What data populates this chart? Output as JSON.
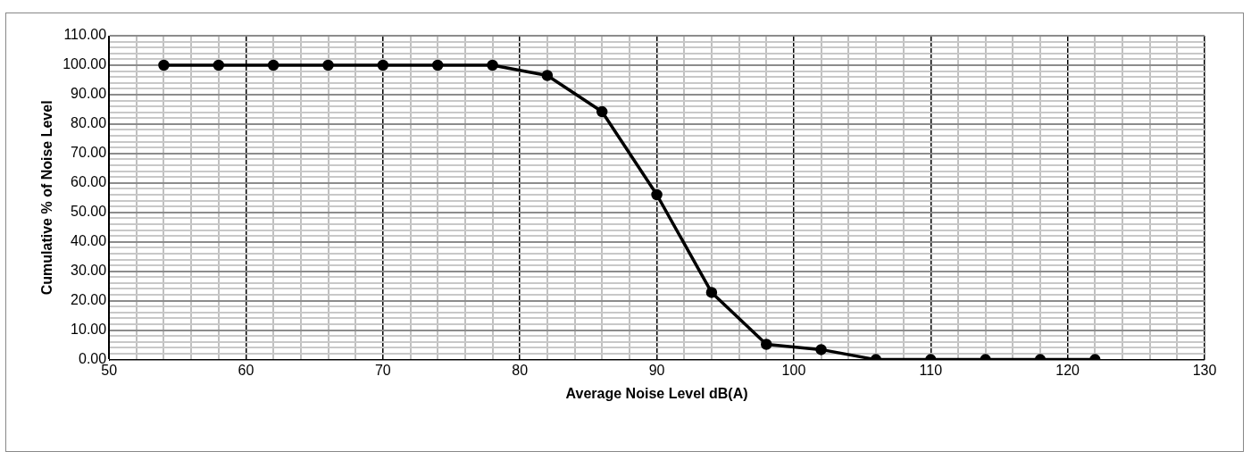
{
  "chart_data": {
    "type": "line",
    "xlabel": "Average Noise Level dB(A)",
    "ylabel": "Cumulative % of Noise Level",
    "x": [
      54,
      58,
      62,
      66,
      70,
      74,
      78,
      82,
      86,
      90,
      94,
      98,
      102,
      106,
      110,
      114,
      118,
      122
    ],
    "series": [
      {
        "color": "#000000",
        "values": [
          100,
          100,
          100,
          100,
          100,
          100,
          100,
          96.5,
          84.2,
          56,
          22.8,
          5.2,
          3.4,
          0,
          0,
          0,
          0,
          0
        ]
      }
    ],
    "xlim": [
      50,
      130
    ],
    "xticks": [
      50,
      {
        "value": 52,
        "label": null
      },
      {
        "value": 54,
        "label": null
      },
      {
        "value": 56,
        "label": null
      },
      {
        "value": 58,
        "label": null
      },
      60,
      {
        "value": 62,
        "label": null
      },
      {
        "value": 64,
        "label": null
      },
      {
        "value": 66,
        "label": null
      },
      {
        "value": 68,
        "label": null
      },
      70,
      {
        "value": 72,
        "label": null
      },
      {
        "value": 74,
        "label": null
      },
      {
        "value": 76,
        "label": null
      },
      {
        "value": 78,
        "label": null
      },
      80,
      {
        "value": 82,
        "label": null
      },
      {
        "value": 84,
        "label": null
      },
      {
        "value": 86,
        "label": null
      },
      {
        "value": 88,
        "label": null
      },
      90,
      {
        "value": 92,
        "label": null
      },
      {
        "value": 94,
        "label": null
      },
      {
        "value": 96,
        "label": null
      },
      {
        "value": 98,
        "label": null
      },
      100,
      {
        "value": 102,
        "label": null
      },
      {
        "value": 104,
        "label": null
      },
      {
        "value": 106,
        "label": null
      },
      {
        "value": 108,
        "label": null
      },
      110,
      {
        "value": 112,
        "label": null
      },
      {
        "value": 114,
        "label": null
      },
      {
        "value": 116,
        "label": null
      },
      {
        "value": 118,
        "label": null
      },
      120,
      {
        "value": 122,
        "label": null
      },
      {
        "value": 124,
        "label": null
      },
      {
        "value": 126,
        "label": null
      },
      {
        "value": 128,
        "label": null
      },
      130
    ],
    "ylim": [
      0,
      110
    ],
    "yticks": [
      {
        "value": 0,
        "label": "0.00"
      },
      {
        "value": 2,
        "label": null
      },
      {
        "value": 4,
        "label": null
      },
      {
        "value": 6,
        "label": null
      },
      {
        "value": 8,
        "label": null
      },
      {
        "value": 10,
        "label": "10.00"
      },
      {
        "value": 12,
        "label": null
      },
      {
        "value": 14,
        "label": null
      },
      {
        "value": 16,
        "label": null
      },
      {
        "value": 18,
        "label": null
      },
      {
        "value": 20,
        "label": "20.00"
      },
      {
        "value": 22,
        "label": null
      },
      {
        "value": 24,
        "label": null
      },
      {
        "value": 26,
        "label": null
      },
      {
        "value": 28,
        "label": null
      },
      {
        "value": 30,
        "label": "30.00"
      },
      {
        "value": 32,
        "label": null
      },
      {
        "value": 34,
        "label": null
      },
      {
        "value": 36,
        "label": null
      },
      {
        "value": 38,
        "label": null
      },
      {
        "value": 40,
        "label": "40.00"
      },
      {
        "value": 42,
        "label": null
      },
      {
        "value": 44,
        "label": null
      },
      {
        "value": 46,
        "label": null
      },
      {
        "value": 48,
        "label": null
      },
      {
        "value": 50,
        "label": "50.00"
      },
      {
        "value": 52,
        "label": null
      },
      {
        "value": 54,
        "label": null
      },
      {
        "value": 56,
        "label": null
      },
      {
        "value": 58,
        "label": null
      },
      {
        "value": 60,
        "label": "60.00"
      },
      {
        "value": 62,
        "label": null
      },
      {
        "value": 64,
        "label": null
      },
      {
        "value": 66,
        "label": null
      },
      {
        "value": 68,
        "label": null
      },
      {
        "value": 70,
        "label": "70.00"
      },
      {
        "value": 72,
        "label": null
      },
      {
        "value": 74,
        "label": null
      },
      {
        "value": 76,
        "label": null
      },
      {
        "value": 78,
        "label": null
      },
      {
        "value": 80,
        "label": "80.00"
      },
      {
        "value": 82,
        "label": null
      },
      {
        "value": 84,
        "label": null
      },
      {
        "value": 86,
        "label": null
      },
      {
        "value": 88,
        "label": null
      },
      {
        "value": 90,
        "label": "90.00"
      },
      {
        "value": 92,
        "label": null
      },
      {
        "value": 94,
        "label": null
      },
      {
        "value": 96,
        "label": null
      },
      {
        "value": 98,
        "label": null
      },
      {
        "value": 100,
        "label": "100.00"
      },
      {
        "value": 102,
        "label": null
      },
      {
        "value": 104,
        "label": null
      },
      {
        "value": 106,
        "label": null
      },
      {
        "value": 108,
        "label": null
      },
      {
        "value": 110,
        "label": "110.00"
      }
    ],
    "grid": true,
    "marker": "circle",
    "line_style": "solid",
    "legend": false
  }
}
